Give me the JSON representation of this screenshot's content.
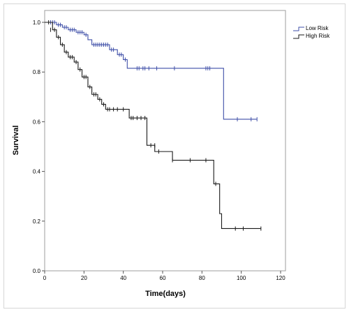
{
  "chart_data": {
    "type": "line",
    "subtype": "kaplan-meier",
    "title": "",
    "xlabel": "Time(days)",
    "ylabel": "Survival",
    "xlim": [
      0,
      120
    ],
    "ylim": [
      0.0,
      1.0
    ],
    "xticks": [
      0,
      20,
      40,
      60,
      80,
      100,
      120
    ],
    "yticks": [
      0.0,
      0.2,
      0.4,
      0.6,
      0.8,
      1.0
    ],
    "xtick_labels": [
      "0",
      "20",
      "40",
      "60",
      "80",
      "100",
      "120"
    ],
    "ytick_labels": [
      "0.0",
      "0.2",
      "0.4",
      "0.6",
      "0.8",
      "1.0"
    ],
    "grid": false,
    "legend_position": "top-right",
    "series": [
      {
        "name": "Low Risk",
        "color": "#3f4fa8",
        "steps": [
          [
            0,
            1.0
          ],
          [
            6,
            0.99
          ],
          [
            9,
            0.98
          ],
          [
            12,
            0.97
          ],
          [
            16,
            0.96
          ],
          [
            20,
            0.95
          ],
          [
            22,
            0.93
          ],
          [
            24,
            0.91
          ],
          [
            33,
            0.89
          ],
          [
            37,
            0.87
          ],
          [
            40,
            0.85
          ],
          [
            42,
            0.815
          ],
          [
            91,
            0.61
          ],
          [
            108,
            0.61
          ]
        ],
        "censored": [
          [
            3,
            1.0
          ],
          [
            4,
            1.0
          ],
          [
            5,
            1.0
          ],
          [
            7,
            0.99
          ],
          [
            8,
            0.99
          ],
          [
            10,
            0.98
          ],
          [
            11,
            0.98
          ],
          [
            13,
            0.97
          ],
          [
            14,
            0.97
          ],
          [
            15,
            0.97
          ],
          [
            17,
            0.96
          ],
          [
            18,
            0.96
          ],
          [
            19,
            0.96
          ],
          [
            21,
            0.95
          ],
          [
            25,
            0.91
          ],
          [
            26,
            0.91
          ],
          [
            27,
            0.91
          ],
          [
            28,
            0.91
          ],
          [
            29,
            0.91
          ],
          [
            30,
            0.91
          ],
          [
            31,
            0.91
          ],
          [
            32,
            0.91
          ],
          [
            34,
            0.89
          ],
          [
            35,
            0.89
          ],
          [
            38,
            0.87
          ],
          [
            39,
            0.87
          ],
          [
            41,
            0.85
          ],
          [
            47,
            0.815
          ],
          [
            48,
            0.815
          ],
          [
            50,
            0.815
          ],
          [
            51,
            0.815
          ],
          [
            53,
            0.815
          ],
          [
            57,
            0.815
          ],
          [
            66,
            0.815
          ],
          [
            82,
            0.815
          ],
          [
            83,
            0.815
          ],
          [
            84,
            0.815
          ],
          [
            98,
            0.61
          ],
          [
            105,
            0.61
          ],
          [
            108,
            0.61
          ]
        ]
      },
      {
        "name": "High Risk",
        "color": "#1a1a1a",
        "steps": [
          [
            0,
            1.0
          ],
          [
            4,
            0.97
          ],
          [
            6,
            0.94
          ],
          [
            8,
            0.91
          ],
          [
            10,
            0.88
          ],
          [
            12,
            0.86
          ],
          [
            15,
            0.84
          ],
          [
            17,
            0.81
          ],
          [
            19,
            0.78
          ],
          [
            22,
            0.74
          ],
          [
            24,
            0.71
          ],
          [
            27,
            0.69
          ],
          [
            29,
            0.67
          ],
          [
            31,
            0.65
          ],
          [
            43,
            0.615
          ],
          [
            52,
            0.505
          ],
          [
            56,
            0.48
          ],
          [
            65,
            0.445
          ],
          [
            86,
            0.35
          ],
          [
            89,
            0.23
          ],
          [
            90,
            0.17
          ],
          [
            110,
            0.17
          ]
        ],
        "censored": [
          [
            2,
            1.0
          ],
          [
            3,
            0.97
          ],
          [
            5,
            0.97
          ],
          [
            7,
            0.94
          ],
          [
            9,
            0.91
          ],
          [
            11,
            0.88
          ],
          [
            13,
            0.86
          ],
          [
            14,
            0.86
          ],
          [
            16,
            0.84
          ],
          [
            18,
            0.81
          ],
          [
            20,
            0.78
          ],
          [
            21,
            0.78
          ],
          [
            23,
            0.74
          ],
          [
            25,
            0.71
          ],
          [
            26,
            0.71
          ],
          [
            28,
            0.69
          ],
          [
            30,
            0.67
          ],
          [
            32,
            0.65
          ],
          [
            33,
            0.65
          ],
          [
            35,
            0.65
          ],
          [
            37,
            0.65
          ],
          [
            40,
            0.65
          ],
          [
            44,
            0.615
          ],
          [
            45,
            0.615
          ],
          [
            47,
            0.615
          ],
          [
            49,
            0.615
          ],
          [
            51,
            0.615
          ],
          [
            54,
            0.505
          ],
          [
            56,
            0.505
          ],
          [
            58,
            0.48
          ],
          [
            65,
            0.445
          ],
          [
            74,
            0.445
          ],
          [
            82,
            0.445
          ],
          [
            87,
            0.35
          ],
          [
            97,
            0.17
          ],
          [
            101,
            0.17
          ],
          [
            110,
            0.17
          ]
        ]
      }
    ]
  }
}
